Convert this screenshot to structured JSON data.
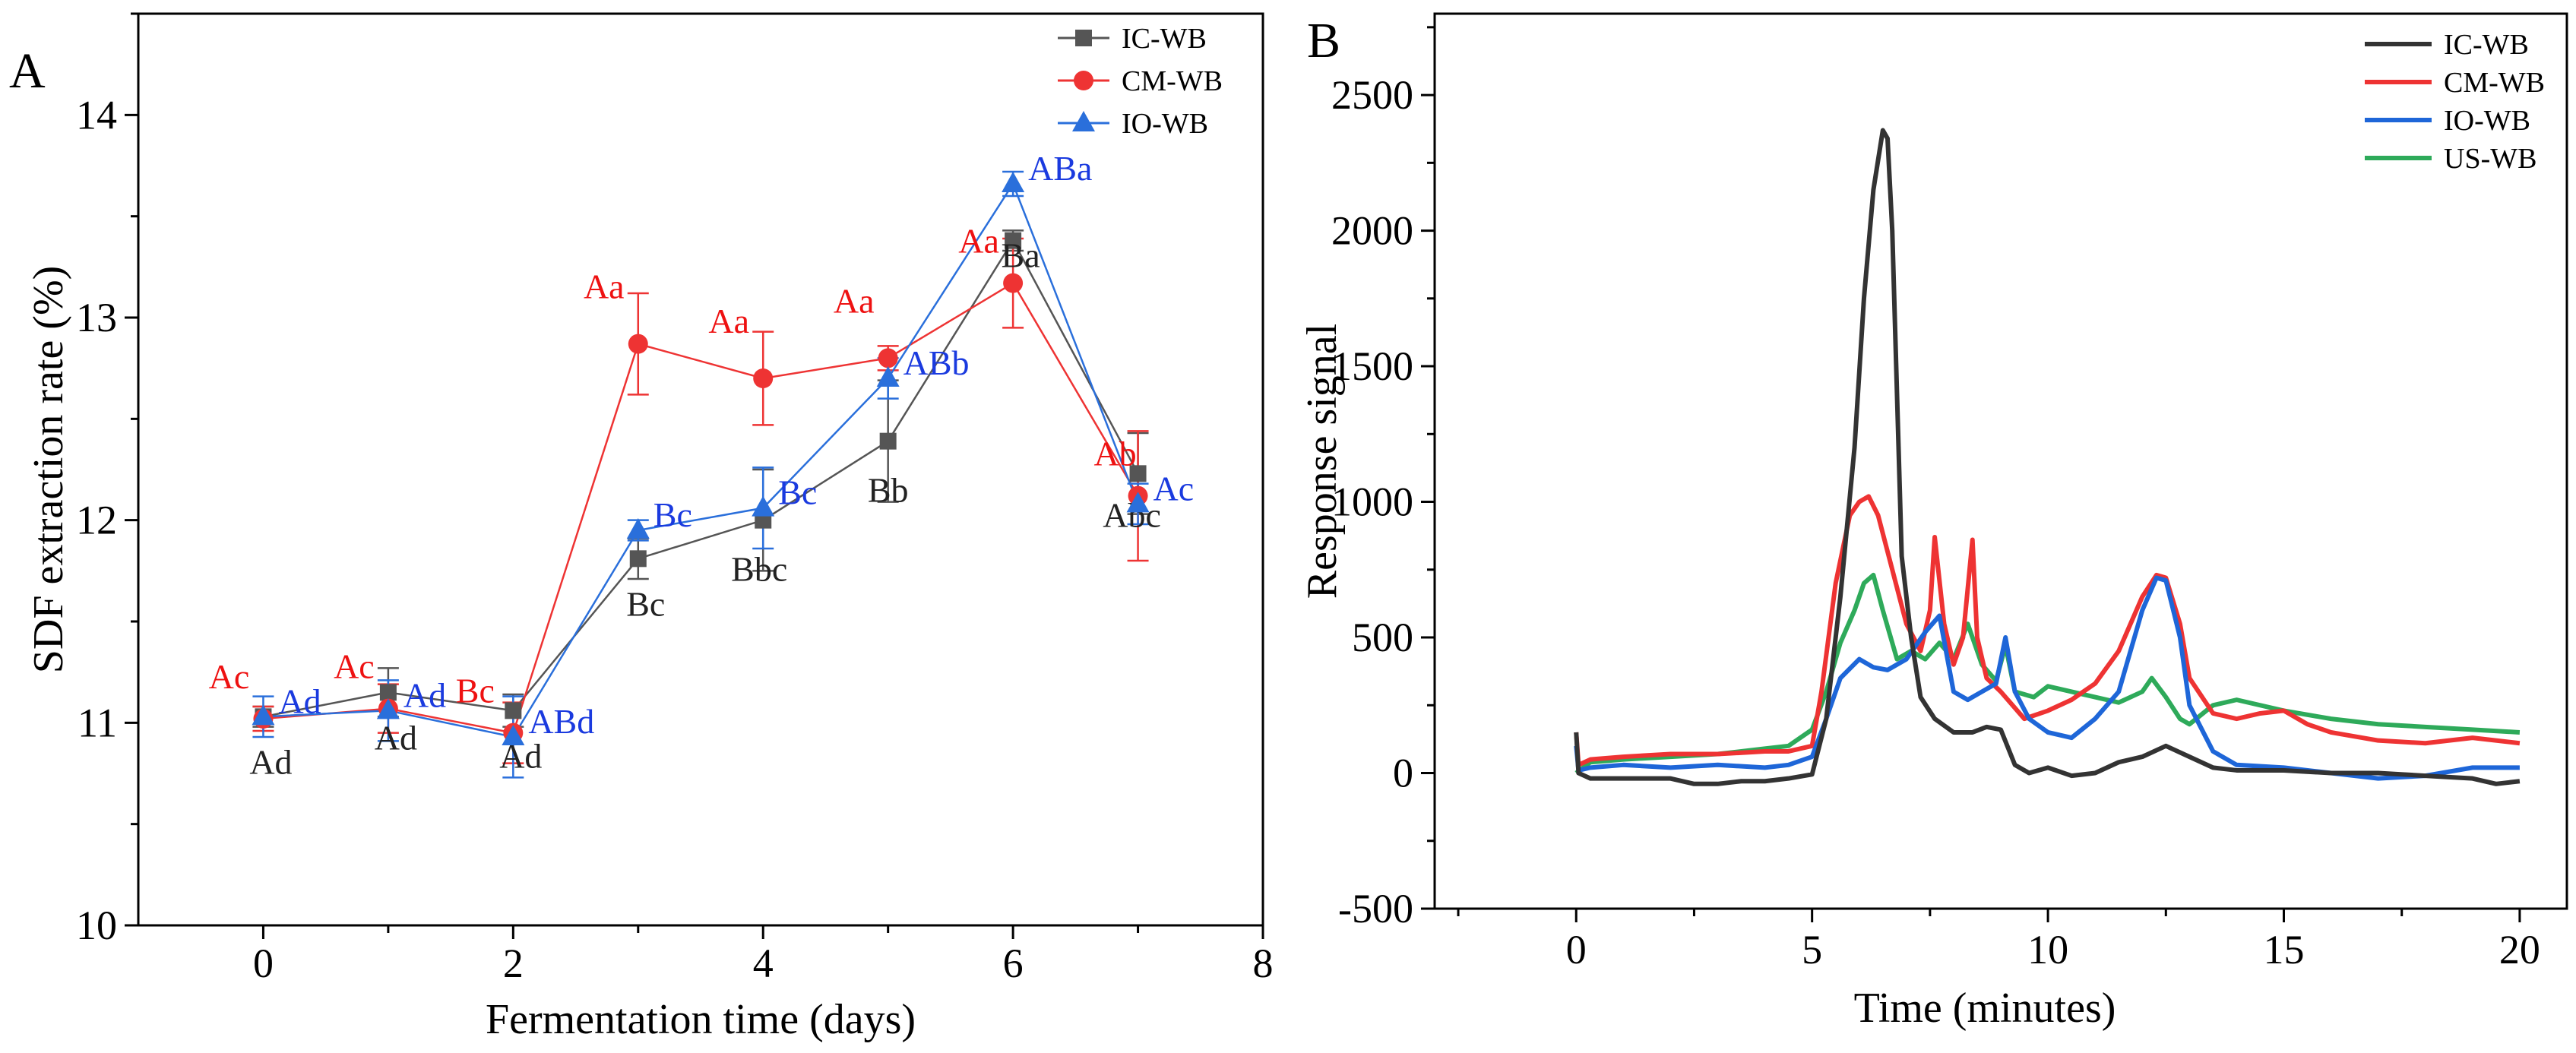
{
  "chart_data": [
    {
      "panel": "A",
      "type": "line",
      "title": "",
      "xlabel": "Fermentation time (days)",
      "ylabel": "SDF extraction rate (%)",
      "xlim": [
        -1,
        8
      ],
      "ylim": [
        10,
        14.5
      ],
      "xticks": [
        0,
        2,
        4,
        6,
        8
      ],
      "yticks": [
        10,
        11,
        12,
        13,
        14
      ],
      "x": [
        0,
        1,
        2,
        3,
        4,
        5,
        6,
        7
      ],
      "series": [
        {
          "name": "IC-WB",
          "color": "#555555",
          "marker": "square",
          "values": [
            11.03,
            11.15,
            11.06,
            11.81,
            12.0,
            12.39,
            13.38,
            12.23
          ],
          "errors": [
            0.05,
            0.12,
            0.08,
            0.1,
            0.25,
            0.3,
            0.05,
            0.2
          ],
          "labels": [
            "Ad",
            "Ad",
            "Ad",
            "Bc",
            "Bbc",
            "Bb",
            "Ba",
            "Abc"
          ],
          "label_color": "#222222"
        },
        {
          "name": "CM-WB",
          "color": "#ee3333",
          "marker": "circle",
          "values": [
            11.02,
            11.07,
            10.95,
            12.87,
            12.7,
            12.8,
            13.17,
            12.12
          ],
          "errors": [
            0.06,
            0.12,
            0.15,
            0.25,
            0.23,
            0.06,
            0.22,
            0.32
          ],
          "labels": [
            "Ac",
            "Ac",
            "Bc",
            "Aa",
            "Aa",
            "Aa",
            "Aa",
            "Ab"
          ],
          "label_color": "#ee1111"
        },
        {
          "name": "IO-WB",
          "color": "#2a6fdb",
          "marker": "triangle",
          "values": [
            11.03,
            11.06,
            10.93,
            11.95,
            12.06,
            12.7,
            13.66,
            12.08
          ],
          "errors": [
            0.1,
            0.15,
            0.2,
            0.05,
            0.2,
            0.1,
            0.06,
            0.1
          ],
          "labels": [
            "Ad",
            "Ad",
            "ABd",
            "Bc",
            "Bc",
            "ABb",
            "ABa",
            "Ac"
          ],
          "label_color": "#1a3adf"
        }
      ],
      "legend": [
        "IC-WB",
        "CM-WB",
        "IO-WB"
      ],
      "legend_position": "top-right"
    },
    {
      "panel": "B",
      "type": "line",
      "title": "",
      "xlabel": "Time (minutes)",
      "ylabel": "Response signal",
      "xlim": [
        -3,
        21
      ],
      "ylim": [
        -500,
        2800
      ],
      "xticks": [
        0,
        5,
        10,
        15,
        20
      ],
      "yticks": [
        -500,
        0,
        500,
        1000,
        1500,
        2000,
        2500
      ],
      "legend": [
        "IC-WB",
        "CM-WB",
        "IO-WB",
        "US-WB"
      ],
      "legend_position": "top-right",
      "series": [
        {
          "name": "IC-WB",
          "color": "#333333",
          "x": [
            0,
            0.05,
            0.3,
            1,
            2,
            2.5,
            3,
            3.5,
            4,
            4.5,
            5,
            5.3,
            5.6,
            5.9,
            6.1,
            6.3,
            6.5,
            6.6,
            6.7,
            6.8,
            6.9,
            7.1,
            7.3,
            7.6,
            8,
            8.4,
            8.7,
            9,
            9.3,
            9.6,
            10,
            10.5,
            11,
            11.5,
            12,
            12.5,
            13,
            13.5,
            14,
            15,
            16,
            17,
            18,
            19,
            19.5,
            20
          ],
          "values": [
            150,
            0,
            -20,
            -20,
            -20,
            -40,
            -40,
            -30,
            -30,
            -20,
            -5,
            200,
            650,
            1200,
            1750,
            2150,
            2370,
            2340,
            2000,
            1400,
            800,
            500,
            280,
            200,
            150,
            150,
            170,
            160,
            30,
            0,
            20,
            -10,
            0,
            40,
            60,
            100,
            60,
            20,
            10,
            10,
            0,
            0,
            -10,
            -20,
            -40,
            -30
          ]
        },
        {
          "name": "CM-WB",
          "color": "#ee3333",
          "x": [
            0,
            0.05,
            0.3,
            1,
            2,
            3,
            4,
            4.5,
            5,
            5.2,
            5.5,
            5.8,
            6.0,
            6.2,
            6.4,
            6.7,
            7,
            7.3,
            7.5,
            7.6,
            7.8,
            8,
            8.2,
            8.4,
            8.5,
            8.7,
            9,
            9.5,
            10,
            10.5,
            11,
            11.5,
            12,
            12.3,
            12.5,
            12.8,
            13,
            13.5,
            14,
            14.5,
            15,
            15.5,
            16,
            17,
            18,
            19,
            20
          ],
          "values": [
            150,
            30,
            50,
            60,
            70,
            70,
            80,
            80,
            100,
            300,
            700,
            950,
            1000,
            1020,
            950,
            750,
            550,
            450,
            600,
            870,
            550,
            400,
            500,
            860,
            500,
            350,
            300,
            200,
            230,
            270,
            330,
            450,
            650,
            730,
            720,
            550,
            350,
            220,
            200,
            220,
            230,
            180,
            150,
            120,
            110,
            130,
            110
          ]
        },
        {
          "name": "IO-WB",
          "color": "#1e66d8",
          "x": [
            0,
            0.05,
            0.3,
            1,
            2,
            3,
            4,
            4.5,
            5,
            5.3,
            5.6,
            6,
            6.3,
            6.6,
            7,
            7.4,
            7.7,
            8,
            8.3,
            8.6,
            8.9,
            9.1,
            9.3,
            9.6,
            10,
            10.5,
            11,
            11.5,
            12,
            12.3,
            12.5,
            12.8,
            13,
            13.5,
            14,
            15,
            16,
            17,
            18,
            19,
            20
          ],
          "values": [
            100,
            10,
            20,
            30,
            20,
            30,
            20,
            30,
            60,
            200,
            350,
            420,
            390,
            380,
            420,
            520,
            580,
            300,
            270,
            300,
            330,
            500,
            300,
            200,
            150,
            130,
            200,
            300,
            600,
            720,
            710,
            500,
            250,
            80,
            30,
            20,
            0,
            -20,
            -10,
            20,
            20
          ]
        },
        {
          "name": "US-WB",
          "color": "#2eaa5a",
          "x": [
            0,
            0.3,
            1,
            2,
            3,
            4,
            4.5,
            5,
            5.3,
            5.6,
            5.9,
            6.1,
            6.3,
            6.5,
            6.8,
            7.1,
            7.4,
            7.7,
            8,
            8.3,
            8.6,
            8.9,
            9.1,
            9.3,
            9.7,
            10,
            10.5,
            11,
            11.5,
            12,
            12.2,
            12.5,
            12.8,
            13,
            13.5,
            14,
            15,
            16,
            17,
            18,
            19,
            20
          ],
          "values": [
            0,
            40,
            50,
            60,
            70,
            90,
            100,
            160,
            300,
            480,
            600,
            700,
            730,
            600,
            420,
            450,
            420,
            480,
            420,
            550,
            400,
            340,
            470,
            300,
            280,
            320,
            300,
            280,
            260,
            300,
            350,
            280,
            200,
            180,
            250,
            270,
            230,
            200,
            180,
            170,
            160,
            150
          ]
        }
      ]
    }
  ],
  "panel_letters": [
    "A",
    "B"
  ]
}
